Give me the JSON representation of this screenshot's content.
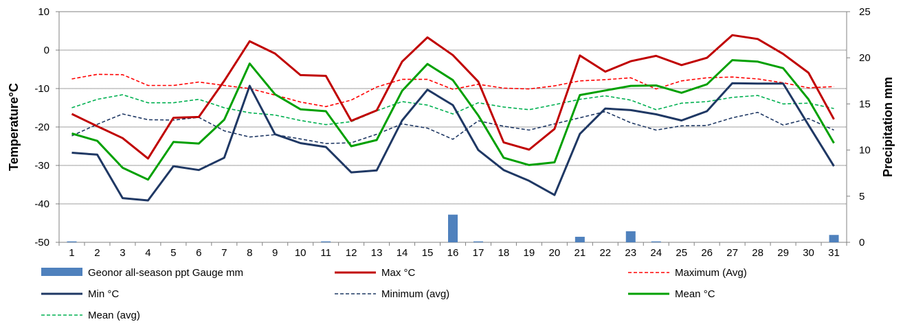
{
  "chart_data": {
    "type": "line",
    "x": [
      1,
      2,
      3,
      4,
      5,
      6,
      7,
      8,
      9,
      10,
      11,
      12,
      13,
      14,
      15,
      16,
      17,
      18,
      19,
      20,
      21,
      22,
      23,
      24,
      25,
      26,
      27,
      28,
      29,
      30,
      31
    ],
    "ylabel": "Temperature°C",
    "ylim": [
      -50,
      10
    ],
    "y_ticks": [
      10,
      0,
      -10,
      -20,
      -30,
      -40,
      -50
    ],
    "y2label": "Precipitation mm",
    "y2lim": [
      0,
      25
    ],
    "y2_ticks": [
      25,
      20,
      15,
      10,
      5,
      0
    ],
    "grid": "horizontal",
    "legend_position": "bottom",
    "colors": {
      "precip": "#4f81bd",
      "max": "#c00000",
      "max_avg": "#ff0000",
      "min": "#1f3864",
      "min_avg": "#1f3864",
      "mean": "#00a000",
      "mean_avg": "#00b050"
    },
    "precip_series": {
      "name": "Geonor all-season ppt Gauge mm",
      "axis": "right",
      "values": [
        0.1,
        0,
        0,
        0,
        0,
        0,
        0,
        0,
        0,
        0,
        0.1,
        0,
        0,
        0,
        0,
        3.0,
        0.1,
        0,
        0,
        0,
        0.6,
        0,
        1.2,
        0.1,
        0,
        0,
        0,
        0,
        0,
        0,
        0.8
      ]
    },
    "series": [
      {
        "key": "max",
        "name": "Max °C",
        "style": "solid",
        "values": [
          -16.6,
          -19.8,
          -22.9,
          -28.2,
          -17.6,
          -17.4,
          -8.0,
          2.3,
          -0.9,
          -6.5,
          -6.7,
          -18.4,
          -15.7,
          -3.0,
          3.3,
          -1.3,
          -8.2,
          -24.0,
          -25.9,
          -20.5,
          -1.4,
          -5.6,
          -2.9,
          -1.5,
          -3.9,
          -2.0,
          3.9,
          2.9,
          -1.0,
          -5.9,
          -18.0
        ]
      },
      {
        "key": "max_avg",
        "name": "Maximum (Avg)",
        "style": "dashed",
        "values": [
          -7.5,
          -6.3,
          -6.4,
          -9.2,
          -9.2,
          -8.3,
          -9.2,
          -10.0,
          -11.7,
          -13.5,
          -14.7,
          -13.0,
          -9.6,
          -7.6,
          -7.6,
          -10.2,
          -8.9,
          -9.9,
          -10.1,
          -9.3,
          -8.0,
          -7.7,
          -7.2,
          -10.1,
          -8.0,
          -7.2,
          -7.0,
          -7.5,
          -8.5,
          -9.8,
          -9.5
        ]
      },
      {
        "key": "min",
        "name": "Min °C",
        "style": "solid",
        "values": [
          -26.7,
          -27.2,
          -38.5,
          -39.1,
          -30.2,
          -31.2,
          -28.0,
          -9.3,
          -21.9,
          -24.2,
          -25.2,
          -31.8,
          -31.3,
          -18.3,
          -10.3,
          -14.3,
          -26.0,
          -31.2,
          -34.0,
          -37.7,
          -21.8,
          -15.2,
          -15.6,
          -16.7,
          -18.3,
          -15.9,
          -8.6,
          -8.7,
          -8.7,
          -19.5,
          -30.2
        ]
      },
      {
        "key": "min_avg",
        "name": "Minimum (avg)",
        "style": "dashed",
        "values": [
          -22.3,
          -19.3,
          -16.6,
          -18.1,
          -18.2,
          -17.5,
          -21.0,
          -22.6,
          -22.0,
          -23.1,
          -24.3,
          -24.1,
          -21.9,
          -19.2,
          -20.3,
          -23.2,
          -18.4,
          -19.8,
          -20.8,
          -19.2,
          -17.6,
          -16.0,
          -18.9,
          -20.8,
          -19.7,
          -19.6,
          -17.6,
          -16.2,
          -19.5,
          -17.8,
          -20.8
        ]
      },
      {
        "key": "mean",
        "name": "Mean °C",
        "style": "solid",
        "values": [
          -21.7,
          -23.6,
          -30.6,
          -33.7,
          -23.9,
          -24.3,
          -18.1,
          -3.5,
          -11.5,
          -15.4,
          -15.9,
          -25.0,
          -23.4,
          -10.6,
          -3.6,
          -7.8,
          -17.0,
          -28.0,
          -29.9,
          -29.2,
          -11.7,
          -10.5,
          -9.3,
          -9.2,
          -11.1,
          -8.9,
          -2.6,
          -3.0,
          -4.7,
          -12.8,
          -24.2
        ]
      },
      {
        "key": "mean_avg",
        "name": "Mean (avg)",
        "style": "dashed",
        "values": [
          -15.0,
          -12.8,
          -11.6,
          -13.7,
          -13.7,
          -12.8,
          -15.0,
          -16.3,
          -16.9,
          -18.3,
          -19.4,
          -18.6,
          -15.8,
          -13.4,
          -14.3,
          -16.6,
          -13.7,
          -14.8,
          -15.5,
          -14.2,
          -12.8,
          -11.9,
          -13.0,
          -15.5,
          -13.8,
          -13.4,
          -12.3,
          -11.8,
          -14.0,
          -13.8,
          -15.2
        ]
      }
    ],
    "legend_order": [
      "precip",
      "max",
      "max_avg",
      "min",
      "min_avg",
      "mean",
      "mean_avg"
    ]
  }
}
